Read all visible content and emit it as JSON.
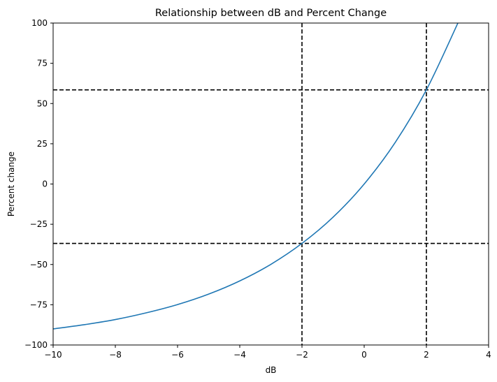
{
  "chart_data": {
    "type": "line",
    "title": "Relationship between dB and Percent Change",
    "xlabel": "dB",
    "ylabel": "Percent change",
    "xlim": [
      -10,
      4
    ],
    "ylim": [
      -100,
      100
    ],
    "x_ticks": [
      -10,
      -8,
      -6,
      -4,
      -2,
      0,
      2,
      4
    ],
    "y_ticks": [
      -100,
      -75,
      -50,
      -25,
      0,
      25,
      50,
      75,
      100
    ],
    "x_tick_labels": [
      "−10",
      "−8",
      "−6",
      "−4",
      "−2",
      "0",
      "2",
      "4"
    ],
    "y_tick_labels": [
      "−100",
      "−75",
      "−50",
      "−25",
      "0",
      "25",
      "50",
      "75",
      "100"
    ],
    "grid": false,
    "series": [
      {
        "color": "#1f77b4",
        "x": [
          -10,
          -9,
          -8,
          -7,
          -6,
          -5,
          -4,
          -3,
          -2,
          -1,
          0,
          1,
          2,
          3,
          3.1
        ],
        "y": [
          -90,
          -87.4,
          -84.2,
          -80.0,
          -74.9,
          -68.4,
          -60.2,
          -49.9,
          -36.9,
          -20.6,
          0,
          25.9,
          58.5,
          99.5,
          104.2
        ]
      }
    ],
    "reference_lines": {
      "vertical_x": [
        -2,
        2
      ],
      "horizontal_y": [
        -36.9,
        58.5
      ],
      "color": "#000000",
      "style": "dashed"
    }
  }
}
